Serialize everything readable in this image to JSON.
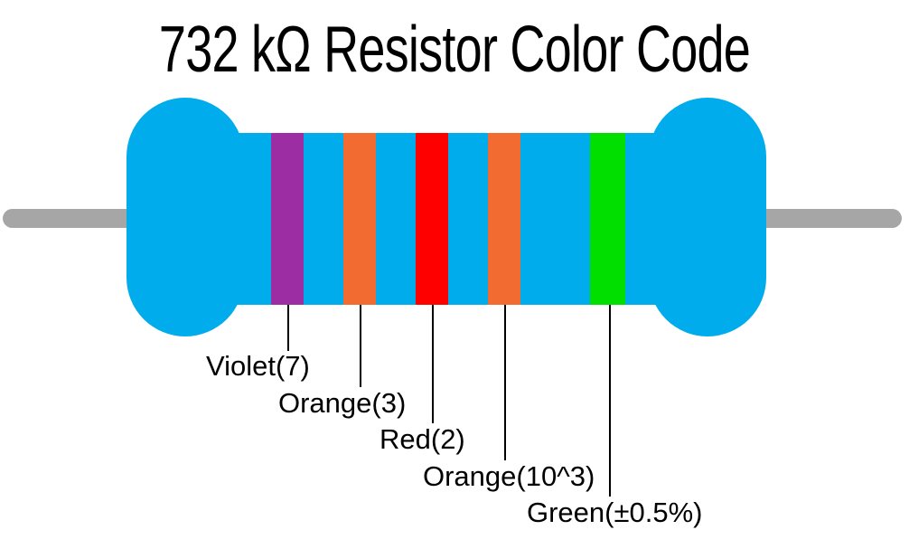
{
  "title": "732 kΩ Resistor Color Code",
  "colors": {
    "background": "#ffffff",
    "body": "#00acec",
    "lead": "#a6a6a6",
    "leader_line": "#000000",
    "text": "#000000"
  },
  "resistor": {
    "bands": [
      {
        "name": "violet",
        "color": "#9c2da3",
        "label": "Violet(7)"
      },
      {
        "name": "orange",
        "color": "#f26c32",
        "label": "Orange(3)"
      },
      {
        "name": "red",
        "color": "#fe0000",
        "label": "Red(2)"
      },
      {
        "name": "orange",
        "color": "#f26c32",
        "label": "Orange(10^3)"
      },
      {
        "name": "green",
        "color": "#00df00",
        "label": "Green(±0.5%)"
      }
    ]
  }
}
